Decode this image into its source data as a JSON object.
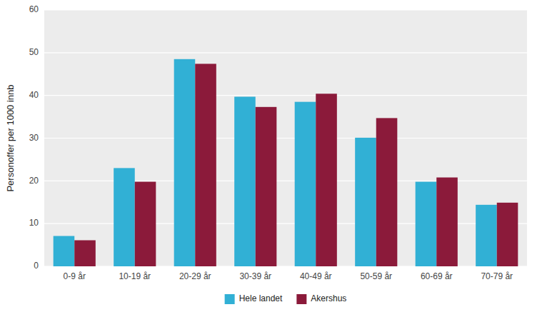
{
  "chart_data": {
    "type": "bar",
    "categories": [
      "0-9 år",
      "10-19 år",
      "20-29 år",
      "30-39 år",
      "40-49 år",
      "50-59 år",
      "60-69 år",
      "70-79 år"
    ],
    "series": [
      {
        "name": "Hele landet",
        "color": "#31B0D5",
        "values": [
          7.1,
          23.0,
          48.5,
          39.7,
          38.5,
          30.1,
          19.8,
          14.4
        ]
      },
      {
        "name": "Akershus",
        "color": "#8B1A3A",
        "values": [
          6.1,
          19.8,
          47.4,
          37.3,
          40.4,
          34.7,
          20.8,
          14.9
        ]
      }
    ],
    "y_label": "Personoffer per 1000 innb",
    "ylim": [
      0,
      60
    ],
    "yticks": [
      0,
      10,
      20,
      30,
      40,
      50,
      60
    ],
    "grid": true,
    "legend": "bottom"
  }
}
